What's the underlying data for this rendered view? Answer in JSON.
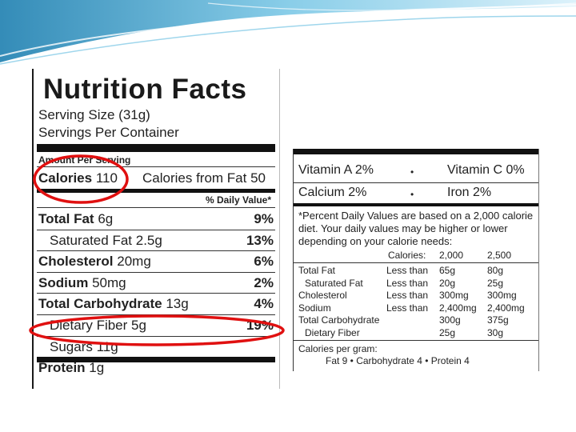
{
  "colors": {
    "accent": "#3aa0c8",
    "annotation": "#e01010",
    "ink": "#1a1a1a"
  },
  "left_label": {
    "title": "Nutrition Facts",
    "serving_size": "Serving Size  (31g)",
    "servings_per_container": "Servings Per Container",
    "amount_per_serving": "Amount Per Serving",
    "calories_label": "Calories",
    "calories_value": "110",
    "calories_from_fat": "Calories from Fat 50",
    "daily_value_header": "% Daily Value*",
    "rows": [
      {
        "name": "Total Fat",
        "amount": "6g",
        "percent": "9%",
        "bold": true,
        "indent": false
      },
      {
        "name": "Saturated Fat",
        "amount": "2.5g",
        "percent": "13%",
        "bold": false,
        "indent": true
      },
      {
        "name": "Cholesterol",
        "amount": "20mg",
        "percent": "6%",
        "bold": true,
        "indent": false
      },
      {
        "name": "Sodium",
        "amount": "50mg",
        "percent": "2%",
        "bold": true,
        "indent": false
      },
      {
        "name": "Total Carbohydrate",
        "amount": "13g",
        "percent": "4%",
        "bold": true,
        "indent": false
      },
      {
        "name": "Dietary Fiber",
        "amount": "5g",
        "percent": "19%",
        "bold": false,
        "indent": true
      },
      {
        "name": "Sugars",
        "amount": "11g",
        "percent": "",
        "bold": false,
        "indent": true
      },
      {
        "name": "Protein",
        "amount": "1g",
        "percent": "",
        "bold": true,
        "indent": false
      }
    ]
  },
  "right_label": {
    "vitamins": [
      {
        "left": "Vitamin A 2%",
        "right": "Vitamin C 0%"
      },
      {
        "left": "Calcium 2%",
        "right": "Iron 2%"
      }
    ],
    "bullet": "•",
    "footnote": "*Percent Daily Values are based on a 2,000 calorie diet. Your daily values may be higher or lower depending on your calorie needs:",
    "dv_header": {
      "label": "Calories:",
      "col1": "2,000",
      "col2": "2,500"
    },
    "dv_rows": [
      {
        "nutrient": "Total Fat",
        "qualifier": "Less than",
        "col1": "65g",
        "col2": "80g",
        "indent": false
      },
      {
        "nutrient": "Saturated Fat",
        "qualifier": "Less than",
        "col1": "20g",
        "col2": "25g",
        "indent": true
      },
      {
        "nutrient": "Cholesterol",
        "qualifier": "Less than",
        "col1": "300mg",
        "col2": "300mg",
        "indent": false
      },
      {
        "nutrient": "Sodium",
        "qualifier": "Less than",
        "col1": "2,400mg",
        "col2": "2,400mg",
        "indent": false
      },
      {
        "nutrient": "Total Carbohydrate",
        "qualifier": "",
        "col1": "300g",
        "col2": "375g",
        "indent": false
      },
      {
        "nutrient": "Dietary Fiber",
        "qualifier": "",
        "col1": "25g",
        "col2": "30g",
        "indent": true
      }
    ],
    "calories_per_gram_label": "Calories per gram:",
    "calories_per_gram_values": "Fat 9  •  Carbohydrate 4  •  Protein 4"
  }
}
